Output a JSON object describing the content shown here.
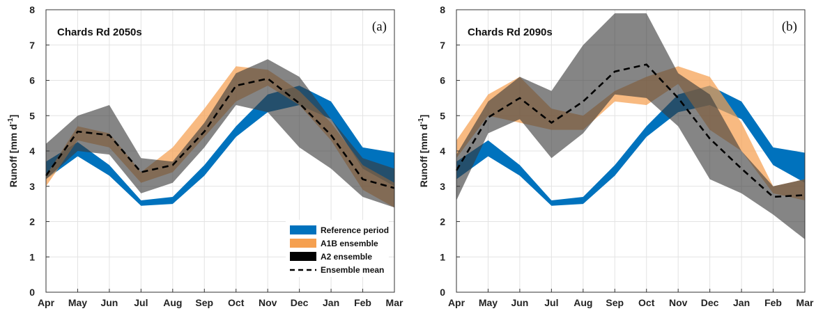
{
  "figure": {
    "legend": [
      {
        "label": "Reference period",
        "color": "#0072bd",
        "kind": "band"
      },
      {
        "label": "A1B ensemble",
        "color": "#f5a050",
        "kind": "band"
      },
      {
        "label": "A2 ensemble",
        "color": "#000000",
        "kind": "band"
      },
      {
        "label": "Ensemble mean",
        "color": "#000000",
        "kind": "dashed-line"
      }
    ]
  },
  "chart_data": [
    {
      "type": "area",
      "title": "Chards Rd 2050s",
      "panel_label": "(a)",
      "ylabel_main": "Runoff [mm d",
      "ylabel_sup": "-1",
      "ylabel_end": "]",
      "categories": [
        "Apr",
        "May",
        "Jun",
        "Jul",
        "Aug",
        "Sep",
        "Oct",
        "Nov",
        "Dec",
        "Jan",
        "Feb",
        "Mar"
      ],
      "ylim": [
        0,
        8
      ],
      "yticks": [
        0,
        1,
        2,
        3,
        4,
        5,
        6,
        7,
        8
      ],
      "grid": true,
      "legend_position": "bottom-right",
      "series": [
        {
          "name": "Reference period",
          "lower": [
            3.2,
            3.85,
            3.3,
            2.45,
            2.5,
            3.3,
            4.4,
            5.1,
            5.3,
            4.9,
            3.5,
            3.0
          ],
          "upper": [
            3.7,
            4.25,
            3.6,
            2.6,
            2.7,
            3.6,
            4.7,
            5.6,
            5.85,
            5.4,
            4.1,
            3.95
          ]
        },
        {
          "name": "A1B ensemble",
          "lower": [
            3.0,
            4.3,
            4.1,
            3.1,
            3.4,
            4.4,
            5.4,
            5.85,
            5.3,
            4.3,
            2.9,
            2.4
          ],
          "upper": [
            3.3,
            4.7,
            4.5,
            3.4,
            4.1,
            5.2,
            6.4,
            6.3,
            5.7,
            4.8,
            3.6,
            3.1
          ]
        },
        {
          "name": "A2 ensemble",
          "lower": [
            3.2,
            4.0,
            3.9,
            2.8,
            3.1,
            4.1,
            5.3,
            5.1,
            4.1,
            3.5,
            2.7,
            2.4
          ],
          "upper": [
            4.2,
            5.0,
            5.3,
            3.8,
            3.7,
            4.8,
            6.2,
            6.6,
            6.1,
            4.9,
            3.8,
            3.5
          ]
        },
        {
          "name": "Ensemble mean",
          "values": [
            3.3,
            4.55,
            4.45,
            3.4,
            3.6,
            4.55,
            5.85,
            6.05,
            5.35,
            4.45,
            3.2,
            2.95
          ]
        }
      ]
    },
    {
      "type": "area",
      "title": "Chards Rd 2090s",
      "panel_label": "(b)",
      "ylabel_main": "Runoff [mm d",
      "ylabel_sup": "-1",
      "ylabel_end": "]",
      "categories": [
        "Apr",
        "May",
        "Jun",
        "Jul",
        "Aug",
        "Sep",
        "Oct",
        "Nov",
        "Dec",
        "Jan",
        "Feb",
        "Mar"
      ],
      "ylim": [
        0,
        8
      ],
      "yticks": [
        0,
        1,
        2,
        3,
        4,
        5,
        6,
        7,
        8
      ],
      "grid": true,
      "series": [
        {
          "name": "Reference period",
          "lower": [
            3.2,
            3.85,
            3.3,
            2.45,
            2.5,
            3.3,
            4.4,
            5.1,
            5.3,
            4.9,
            3.6,
            3.1
          ],
          "upper": [
            3.7,
            4.3,
            3.6,
            2.6,
            2.7,
            3.6,
            4.7,
            5.6,
            5.85,
            5.4,
            4.1,
            3.95
          ]
        },
        {
          "name": "A1B ensemble",
          "lower": [
            3.8,
            5.0,
            4.8,
            4.6,
            4.6,
            5.4,
            5.3,
            5.9,
            4.6,
            4.0,
            2.8,
            2.6
          ],
          "upper": [
            4.3,
            5.6,
            6.1,
            5.2,
            5.0,
            5.7,
            6.1,
            6.4,
            6.1,
            4.8,
            3.0,
            3.2
          ]
        },
        {
          "name": "A2 ensemble",
          "lower": [
            2.6,
            4.5,
            4.9,
            3.8,
            4.5,
            5.6,
            5.5,
            4.7,
            3.2,
            2.8,
            2.2,
            1.5
          ],
          "upper": [
            3.9,
            5.4,
            6.1,
            5.7,
            7.0,
            7.9,
            7.9,
            6.2,
            5.6,
            4.0,
            3.0,
            3.2
          ]
        },
        {
          "name": "Ensemble mean",
          "values": [
            3.45,
            4.95,
            5.5,
            4.8,
            5.4,
            6.25,
            6.45,
            5.5,
            4.35,
            3.5,
            2.7,
            2.75
          ]
        }
      ]
    }
  ]
}
